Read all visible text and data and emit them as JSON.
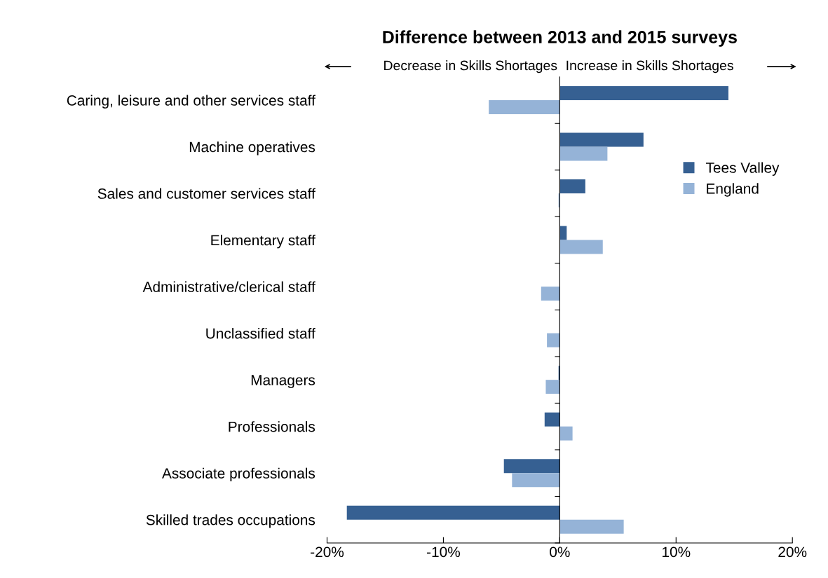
{
  "chart_data": {
    "type": "bar",
    "orientation": "horizontal",
    "title": "Difference between 2013 and 2015 surveys",
    "annotations": [
      "Decrease in Skills Shortages",
      "Increase in Skills Shortages"
    ],
    "categories": [
      "Caring, leisure and other services staff",
      "Machine operatives",
      "Sales and customer services staff",
      "Elementary staff",
      "Administrative/clerical staff",
      "Unclassified staff",
      "Managers",
      "Professionals",
      "Associate professionals",
      "Skilled trades occupations"
    ],
    "series": [
      {
        "name": "Tees Valley",
        "color": "#366092",
        "values": [
          14.5,
          7.2,
          2.2,
          0.6,
          0,
          0,
          -0.1,
          -1.3,
          -4.8,
          -18.3
        ]
      },
      {
        "name": "England",
        "color": "#95b3d7",
        "values": [
          -6.1,
          4.1,
          -0.1,
          3.7,
          -1.6,
          -1.1,
          -1.2,
          1.1,
          -4.1,
          5.5
        ]
      }
    ],
    "xlim": [
      -20,
      20
    ],
    "xticks": [
      {
        "value": -20,
        "label": "-20%"
      },
      {
        "value": -10,
        "label": "-10%"
      },
      {
        "value": 0,
        "label": "0%"
      },
      {
        "value": 10,
        "label": "10%"
      },
      {
        "value": 20,
        "label": "20%"
      }
    ],
    "legend": "right"
  }
}
